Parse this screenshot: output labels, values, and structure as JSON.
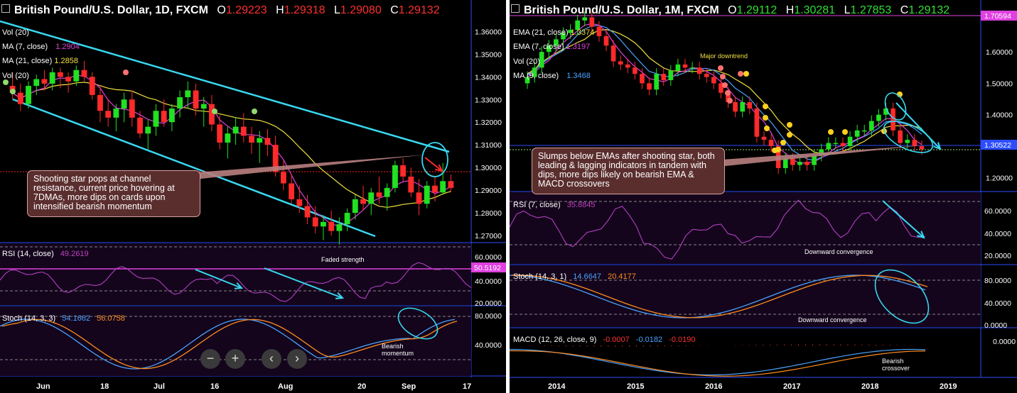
{
  "left_chart": {
    "title": "British Pound/U.S. Dollar, 1D, FXCM",
    "ohlc": {
      "o_label": "O",
      "o": "1.29223",
      "h_label": "H",
      "h": "1.29318",
      "l_label": "L",
      "l": "1.29080",
      "c_label": "C",
      "c": "1.29132"
    },
    "indicators": {
      "vol1": "Vol (20)",
      "ma7": {
        "label": "MA (7, close)",
        "value": "1.2904",
        "color": "#e040e0"
      },
      "ma21": {
        "label": "MA (21, close)",
        "value": "1.2858",
        "color": "#f0e040"
      },
      "vol2": "Vol (20)"
    },
    "note": "Shooting star pops at channel resistance, current price hovering at 7DMAs, more dips on cards upon intensified bearish momentum",
    "rsi": {
      "label": "RSI (14, close)",
      "value": "49.2619",
      "annotation": "Faded strength",
      "last_badge": "50.5192"
    },
    "stoch": {
      "label": "Stoch (14, 3, 3)",
      "k": "54.1662",
      "d": "56.0758",
      "annotation": "Bearish momentum"
    },
    "nav_buttons": {
      "zoom_out": "−",
      "zoom_in": "+",
      "prev": "‹",
      "next": "›"
    }
  },
  "right_chart": {
    "title": "British Pound/U.S. Dollar, 1M, FXCM",
    "ohlc": {
      "o_label": "O",
      "o": "1.29112",
      "h_label": "H",
      "h": "1.30281",
      "l_label": "L",
      "l": "1.27853",
      "c_label": "C",
      "c": "1.29132"
    },
    "indicators": {
      "ema21": {
        "label": "EMA (21, close)",
        "value": "1.3374",
        "color": "#f0e040"
      },
      "ema7": {
        "label": "EMA (7, close)",
        "value": "1.3197",
        "color": "#e040e0"
      },
      "vol": "Vol (20)",
      "ma9": {
        "label": "MA (9, close)",
        "value": "1.3468",
        "color": "#4aa3ff"
      }
    },
    "annotation_top": "Major downtrend",
    "note": "Slumps below EMAs after shooting star, both leading & lagging indicators in tandem with dips, more dips likely on bearish EMA & MACD crossovers",
    "badge_top": "1.70594",
    "badge_price": "1.30522",
    "rsi": {
      "label": "RSI (7, close)",
      "value": "35.8845",
      "annotation": "Downward convergence"
    },
    "stoch": {
      "label": "Stoch (14, 3, 1)",
      "k": "14.6647",
      "d": "20.4177",
      "annotation": "Downward convergence"
    },
    "macd": {
      "label": "MACD (12, 26, close, 9)",
      "hist": "-0.0007",
      "macd": "-0.0182",
      "signal": "-0.0190",
      "annotation": "Bearish crossover"
    }
  },
  "chart_data": [
    {
      "type": "candlestick",
      "title": "British Pound/U.S. Dollar, 1D, FXCM",
      "x_ticks": [
        "Jun",
        "18",
        "Jul",
        "16",
        "Aug",
        "20",
        "Sep",
        "17"
      ],
      "y_ticks": [
        "1.36000",
        "1.35000",
        "1.34000",
        "1.33000",
        "1.32000",
        "1.31000",
        "1.30000",
        "1.29000",
        "1.28000",
        "1.27000"
      ],
      "ylim": [
        1.265,
        1.362
      ],
      "candles": [
        [
          1.336,
          1.342,
          1.33,
          1.333
        ],
        [
          1.333,
          1.337,
          1.325,
          1.328
        ],
        [
          1.328,
          1.338,
          1.326,
          1.336
        ],
        [
          1.336,
          1.341,
          1.332,
          1.339
        ],
        [
          1.339,
          1.343,
          1.334,
          1.337
        ],
        [
          1.337,
          1.344,
          1.334,
          1.342
        ],
        [
          1.342,
          1.344,
          1.335,
          1.34
        ],
        [
          1.34,
          1.342,
          1.333,
          1.338
        ],
        [
          1.338,
          1.345,
          1.336,
          1.343
        ],
        [
          1.343,
          1.347,
          1.338,
          1.34
        ],
        [
          1.34,
          1.342,
          1.33,
          1.332
        ],
        [
          1.332,
          1.336,
          1.32,
          1.325
        ],
        [
          1.325,
          1.33,
          1.318,
          1.322
        ],
        [
          1.322,
          1.328,
          1.316,
          1.326
        ],
        [
          1.326,
          1.333,
          1.32,
          1.33
        ],
        [
          1.33,
          1.334,
          1.318,
          1.322
        ],
        [
          1.322,
          1.325,
          1.313,
          1.315
        ],
        [
          1.315,
          1.321,
          1.308,
          1.318
        ],
        [
          1.318,
          1.328,
          1.314,
          1.325
        ],
        [
          1.325,
          1.33,
          1.318,
          1.32
        ],
        [
          1.32,
          1.328,
          1.316,
          1.326
        ],
        [
          1.326,
          1.334,
          1.322,
          1.331
        ],
        [
          1.331,
          1.338,
          1.326,
          1.334
        ],
        [
          1.334,
          1.337,
          1.323,
          1.326
        ],
        [
          1.326,
          1.331,
          1.318,
          1.328
        ],
        [
          1.328,
          1.332,
          1.316,
          1.319
        ],
        [
          1.319,
          1.323,
          1.308,
          1.311
        ],
        [
          1.311,
          1.318,
          1.304,
          1.315
        ],
        [
          1.315,
          1.322,
          1.31,
          1.318
        ],
        [
          1.318,
          1.324,
          1.311,
          1.314
        ],
        [
          1.314,
          1.318,
          1.306,
          1.311
        ],
        [
          1.311,
          1.316,
          1.302,
          1.313
        ],
        [
          1.313,
          1.317,
          1.305,
          1.31
        ],
        [
          1.31,
          1.314,
          1.296,
          1.298
        ],
        [
          1.298,
          1.303,
          1.29,
          1.293
        ],
        [
          1.293,
          1.297,
          1.284,
          1.286
        ],
        [
          1.286,
          1.292,
          1.28,
          1.283
        ],
        [
          1.283,
          1.288,
          1.275,
          1.278
        ],
        [
          1.278,
          1.283,
          1.271,
          1.274
        ],
        [
          1.274,
          1.279,
          1.268,
          1.276
        ],
        [
          1.276,
          1.281,
          1.27,
          1.272
        ],
        [
          1.272,
          1.278,
          1.266,
          1.275
        ],
        [
          1.275,
          1.282,
          1.272,
          1.28
        ],
        [
          1.28,
          1.288,
          1.277,
          1.286
        ],
        [
          1.286,
          1.292,
          1.281,
          1.284
        ],
        [
          1.284,
          1.291,
          1.279,
          1.289
        ],
        [
          1.289,
          1.296,
          1.284,
          1.287
        ],
        [
          1.287,
          1.293,
          1.281,
          1.291
        ],
        [
          1.291,
          1.303,
          1.289,
          1.301
        ],
        [
          1.301,
          1.304,
          1.294,
          1.296
        ],
        [
          1.296,
          1.3,
          1.287,
          1.289
        ],
        [
          1.289,
          1.295,
          1.279,
          1.284
        ],
        [
          1.284,
          1.294,
          1.282,
          1.292
        ],
        [
          1.292,
          1.296,
          1.285,
          1.289
        ],
        [
          1.289,
          1.302,
          1.288,
          1.294
        ],
        [
          1.294,
          1.297,
          1.289,
          1.291
        ]
      ]
    },
    {
      "type": "candlestick",
      "title": "British Pound/U.S. Dollar, 1M, FXCM",
      "x_ticks": [
        "2014",
        "2015",
        "2016",
        "2017",
        "2018",
        "2019"
      ],
      "y_ticks": [
        "1.60000",
        "1.50000",
        "1.40000",
        "1.30000",
        "1.20000"
      ],
      "ylim": [
        1.16,
        1.72
      ],
      "close_series": [
        1.52,
        1.55,
        1.6,
        1.62,
        1.64,
        1.66,
        1.67,
        1.7,
        1.71,
        1.68,
        1.65,
        1.62,
        1.57,
        1.56,
        1.55,
        1.53,
        1.5,
        1.48,
        1.53,
        1.51,
        1.54,
        1.56,
        1.55,
        1.55,
        1.53,
        1.52,
        1.5,
        1.47,
        1.44,
        1.41,
        1.44,
        1.42,
        1.33,
        1.32,
        1.3,
        1.23,
        1.26,
        1.24,
        1.25,
        1.24,
        1.27,
        1.29,
        1.31,
        1.31,
        1.3,
        1.33,
        1.35,
        1.35,
        1.38,
        1.4,
        1.42,
        1.35,
        1.31,
        1.32,
        1.3,
        1.29
      ]
    }
  ]
}
